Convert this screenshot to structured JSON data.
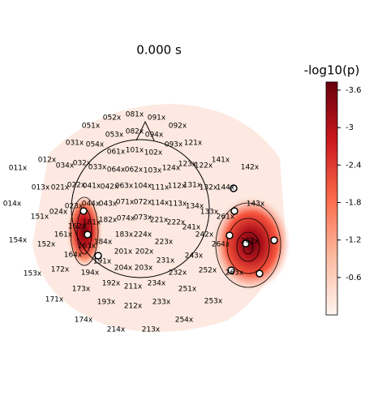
{
  "chart_data": {
    "type": "topomap",
    "title": "0.000 s",
    "sensors": [
      "052x",
      "081x",
      "091x",
      "051x",
      "092x",
      "053x",
      "082x",
      "094x",
      "031x",
      "054x",
      "093x",
      "121x",
      "061x",
      "101x",
      "102x",
      "012x",
      "141x",
      "034x",
      "032x",
      "033x",
      "064x",
      "062x",
      "103x",
      "124x",
      "123x",
      "122x",
      "142x",
      "011x",
      "013x",
      "021x",
      "022x",
      "041x",
      "042x",
      "063x",
      "104x",
      "111x",
      "112x",
      "131x",
      "132x",
      "144x",
      "014x",
      "023x",
      "044x",
      "043x",
      "071x",
      "072x",
      "114x",
      "113x",
      "134x",
      "143x",
      "151x",
      "024x",
      "162x",
      "181x",
      "182x",
      "074x",
      "073x",
      "221x",
      "222x",
      "133x",
      "261x",
      "241x",
      "242x",
      "154x",
      "152x",
      "161x",
      "183x",
      "224x",
      "223x",
      "264x",
      "262x",
      "163x",
      "184x",
      "164x",
      "191x",
      "201x",
      "202x",
      "243x",
      "153x",
      "172x",
      "194x",
      "204x",
      "203x",
      "231x",
      "232x",
      "252x",
      "263x",
      "173x",
      "192x",
      "211x",
      "234x",
      "251x",
      "171x",
      "193x",
      "212x",
      "233x",
      "253x",
      "174x",
      "254x",
      "214x",
      "213x"
    ],
    "colorbar": {
      "label": "-log10(p)",
      "lim": [
        0,
        -3.73
      ],
      "ticks": [
        -3.6,
        -3.0,
        -2.4,
        -1.8,
        -1.2,
        -0.6
      ],
      "colors": [
        "#fff5f0",
        "#fcbba1",
        "#fb6a4a",
        "#cb181d",
        "#67000d"
      ]
    }
  }
}
